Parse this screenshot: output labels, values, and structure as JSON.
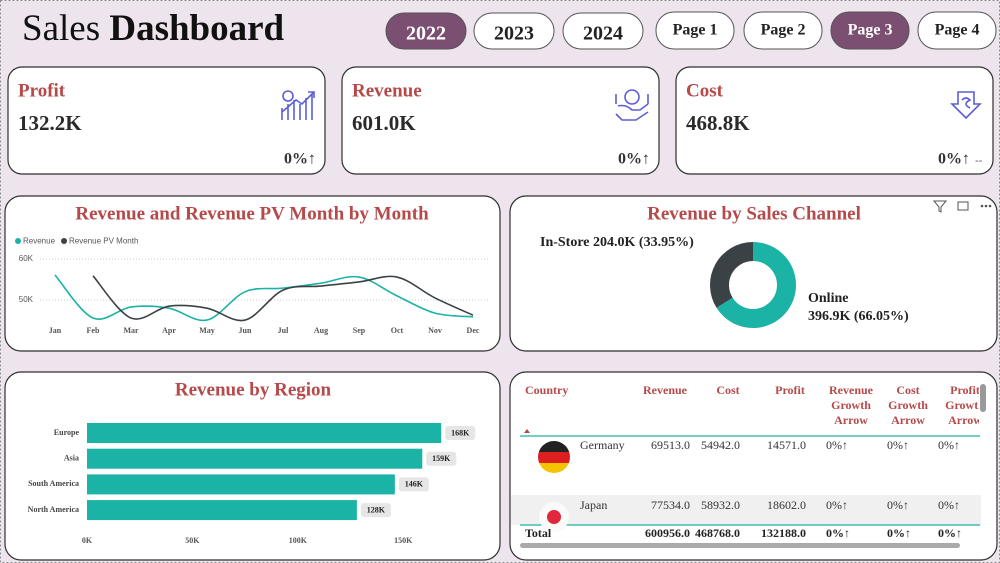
{
  "header": {
    "title": [
      "Sales",
      "Dashboard"
    ],
    "years": [
      "2022",
      "2023",
      "2024"
    ],
    "selected_year": 0,
    "pages": [
      "Page 1",
      "Page 2",
      "Page 3",
      "Page 4"
    ],
    "selected_page": 2
  },
  "kpis": [
    {
      "label": "Profit",
      "value": "132.2K",
      "change": "0%↑"
    },
    {
      "label": "Revenue",
      "value": "601.0K",
      "change": "0%↑"
    },
    {
      "label": "Cost",
      "value": "468.8K",
      "change": "0%↑",
      "note": "--"
    }
  ],
  "chart_data": [
    {
      "type": "line",
      "title": "Revenue and Revenue PV Month by Month",
      "categories": [
        "Jan",
        "Feb",
        "Mar",
        "Apr",
        "May",
        "Jun",
        "Jul",
        "Aug",
        "Sep",
        "Oct",
        "Nov",
        "Dec"
      ],
      "series": [
        {
          "name": "Revenue",
          "color": "#1ab3a6",
          "values": [
            56100,
            45600,
            48300,
            48000,
            45100,
            52000,
            52900,
            54100,
            55600,
            51000,
            46800,
            45900
          ]
        },
        {
          "name": "Revenue PV Month",
          "color": "#3b4246",
          "values": [
            null,
            55900,
            45600,
            48500,
            48000,
            45100,
            52400,
            53400,
            54400,
            55600,
            50500,
            46300
          ]
        }
      ],
      "ylim": [
        44000,
        61000
      ],
      "yticks": [
        {
          "value": 50000,
          "label": "50K"
        },
        {
          "value": 60000,
          "label": "60K"
        }
      ],
      "grid": true
    },
    {
      "type": "donut",
      "title": "Revenue by Sales Channel",
      "categories": [
        "In-Store",
        "Online"
      ],
      "values": [
        204.0,
        396.9
      ],
      "value_labels": [
        "204.0K (33.95%)",
        "396.9K (66.05%)"
      ],
      "colors": [
        "#3b4246",
        "#1ab3a6"
      ]
    },
    {
      "type": "hbar",
      "title": "Revenue by Region",
      "categories": [
        "Europe",
        "Asia",
        "South America",
        "North America"
      ],
      "values": [
        168000,
        159000,
        146000,
        128000
      ],
      "value_labels": [
        "168K",
        "159K",
        "146K",
        "128K"
      ],
      "color": "#1ab3a6",
      "xlim": [
        0,
        175000
      ],
      "xticks": [
        {
          "value": 0,
          "label": "0K"
        },
        {
          "value": 50000,
          "label": "50K"
        },
        {
          "value": 100000,
          "label": "100K"
        },
        {
          "value": 150000,
          "label": "150K"
        }
      ]
    }
  ],
  "table": {
    "columns": [
      [
        "Country"
      ],
      [
        "Revenue"
      ],
      [
        "Cost"
      ],
      [
        "Profit"
      ],
      [
        "Revenue",
        "Growth",
        "Arrow"
      ],
      [
        "Cost",
        "Growth",
        "Arrow"
      ],
      [
        "Profit",
        "Growth",
        "Arrow"
      ]
    ],
    "rows": [
      [
        "Germany",
        "69513.0",
        "54942.0",
        "14571.0",
        "0%↑",
        "0%↑",
        "0%↑"
      ],
      [
        "Japan",
        "77534.0",
        "58932.0",
        "18602.0",
        "0%↑",
        "0%↑",
        "0%↑"
      ]
    ],
    "total": [
      "Total",
      "600956.0",
      "468768.0",
      "132188.0",
      "0%↑",
      "0%↑",
      "0%↑"
    ]
  }
}
